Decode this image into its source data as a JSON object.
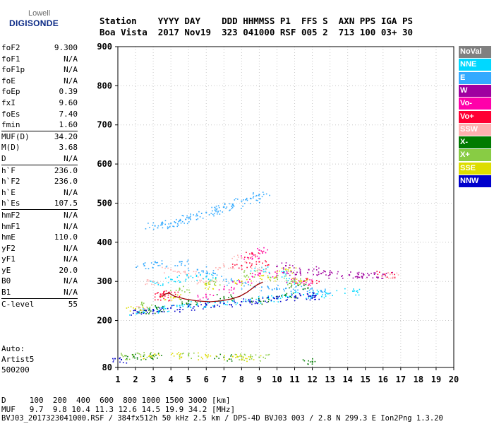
{
  "logo": {
    "line1": "Lowell",
    "line2": "DIGISONDE"
  },
  "header": {
    "line1": "Station    YYYY DAY    DDD HHMMSS P1  FFS S  AXN PPS IGA PS",
    "line2": "Boa Vista  2017 Nov19  323 041000 RSF 005 2  713 100 03+ 30"
  },
  "parameters": [
    {
      "name": "foF2",
      "value": "9.300"
    },
    {
      "name": "foF1",
      "value": "N/A"
    },
    {
      "name": "foF1p",
      "value": "N/A"
    },
    {
      "name": "foE",
      "value": "N/A"
    },
    {
      "name": "foEp",
      "value": "0.39"
    },
    {
      "name": "fxI",
      "value": "9.60"
    },
    {
      "name": "foEs",
      "value": "7.40"
    },
    {
      "name": "fmin",
      "value": "1.60"
    },
    {
      "name": "MUF(D)",
      "value": "34.20",
      "sep": true
    },
    {
      "name": "M(D)",
      "value": "3.68"
    },
    {
      "name": "D",
      "value": "N/A"
    },
    {
      "name": "h`F",
      "value": "236.0",
      "sep": true
    },
    {
      "name": "h`F2",
      "value": "236.0"
    },
    {
      "name": "h`E",
      "value": "N/A"
    },
    {
      "name": "h`Es",
      "value": "107.5"
    },
    {
      "name": "hmF2",
      "value": "N/A",
      "sep": true
    },
    {
      "name": "hmF1",
      "value": "N/A"
    },
    {
      "name": "hmE",
      "value": "110.0"
    },
    {
      "name": "yF2",
      "value": "N/A"
    },
    {
      "name": "yF1",
      "value": "N/A"
    },
    {
      "name": "yE",
      "value": "20.0"
    },
    {
      "name": "B0",
      "value": "N/A"
    },
    {
      "name": "B1",
      "value": "N/A"
    },
    {
      "name": "C-level",
      "value": "55",
      "sep": true
    }
  ],
  "auto_lines": [
    "Auto:",
    "Artist5",
    "500200"
  ],
  "legend": [
    {
      "label": "NoVal",
      "color": "#808080",
      "text_color": "#ffffff"
    },
    {
      "label": "NNE",
      "color": "#00d8ff",
      "text_color": "#ffffff"
    },
    {
      "label": "E",
      "color": "#33aaff",
      "text_color": "#ffffff"
    },
    {
      "label": "W",
      "color": "#a000a0",
      "text_color": "#ffffff"
    },
    {
      "label": "Vo-",
      "color": "#ff00aa",
      "text_color": "#ffffff"
    },
    {
      "label": "Vo+",
      "color": "#ff0033",
      "text_color": "#ffffff"
    },
    {
      "label": "SSW",
      "color": "#ffb0b0",
      "text_color": "#ffffff"
    },
    {
      "label": "X-",
      "color": "#007a00",
      "text_color": "#ffffff"
    },
    {
      "label": "X+",
      "color": "#88cc44",
      "text_color": "#ffffff"
    },
    {
      "label": "SSE",
      "color": "#dddd00",
      "text_color": "#ffffff"
    },
    {
      "label": "NNW",
      "color": "#0000cc",
      "text_color": "#ffffff"
    }
  ],
  "bottom": {
    "d_line": "D     100  200  400  600  800 1000 1500 3000 [km]",
    "muf_line": "MUF   9.7  9.8 10.4 11.3 12.6 14.5 19.9 34.2 [MHz]",
    "footer": "BVJ03_2017323041000.RSF / 384fx512h 50 kHz 2.5 km / DPS-4D BVJ03 003 / 2.8 N 299.3 E Ion2Png 1.3.20"
  },
  "chart_data": {
    "type": "scatter",
    "title": "",
    "xlabel": "",
    "ylabel": "",
    "x_ticks": [
      1,
      2,
      3,
      4,
      5,
      6,
      7,
      8,
      9,
      10,
      11,
      12,
      13,
      14,
      15,
      16,
      17,
      18,
      19,
      20
    ],
    "y_ticks": [
      80,
      200,
      300,
      400,
      500,
      600,
      700,
      800,
      900
    ],
    "xlim": [
      1,
      20
    ],
    "ylim": [
      80,
      900
    ],
    "grid": "dotted, at x = 2,3,4,...,19 and y = 200,300,...,800",
    "series": [
      {
        "name": "NNE",
        "color": "#00d8ff",
        "points": [
          [
            2.2,
            223
          ],
          [
            2.8,
            228
          ],
          [
            3.6,
            232
          ],
          [
            4.5,
            238
          ],
          [
            5.5,
            242
          ],
          [
            6.5,
            246
          ],
          [
            7.5,
            250
          ],
          [
            8.5,
            254
          ],
          [
            9.5,
            258
          ],
          [
            10.5,
            262
          ],
          [
            11.5,
            266
          ],
          [
            12.3,
            268
          ],
          [
            12.8,
            270
          ],
          [
            3.0,
            300
          ],
          [
            4.0,
            305
          ],
          [
            5.0,
            310
          ],
          [
            6.0,
            312
          ],
          [
            9.0,
            330
          ],
          [
            10.0,
            320
          ],
          [
            11.0,
            300
          ],
          [
            14.3,
            275
          ]
        ]
      },
      {
        "name": "E",
        "color": "#33aaff",
        "points": [
          [
            3.1,
            442
          ],
          [
            3.5,
            445
          ],
          [
            4.0,
            448
          ],
          [
            4.5,
            455
          ],
          [
            5.0,
            462
          ],
          [
            5.5,
            468
          ],
          [
            6.0,
            476
          ],
          [
            6.5,
            482
          ],
          [
            7.0,
            490
          ],
          [
            7.5,
            496
          ],
          [
            8.0,
            505
          ],
          [
            8.5,
            512
          ],
          [
            9.0,
            522
          ],
          [
            2.5,
            340
          ],
          [
            3.5,
            345
          ],
          [
            4.5,
            350
          ],
          [
            5.5,
            330
          ],
          [
            6.5,
            320
          ],
          [
            7.5,
            300
          ],
          [
            8.5,
            290
          ],
          [
            9.5,
            285
          ],
          [
            10.5,
            282
          ],
          [
            11.5,
            280
          ],
          [
            12.5,
            276
          ]
        ]
      },
      {
        "name": "W",
        "color": "#a000a0",
        "points": [
          [
            11.8,
            330
          ],
          [
            12.5,
            320
          ],
          [
            13.0,
            318
          ],
          [
            14.1,
            316
          ],
          [
            14.6,
            318
          ],
          [
            15.2,
            316
          ],
          [
            16.0,
            318
          ],
          [
            10.5,
            340
          ],
          [
            10.8,
            325
          ]
        ]
      },
      {
        "name": "Vo-",
        "color": "#ff00aa",
        "points": [
          [
            6.0,
            260
          ],
          [
            7.0,
            280
          ],
          [
            8.0,
            300
          ],
          [
            9.0,
            320
          ],
          [
            10.0,
            320
          ],
          [
            11.0,
            305
          ],
          [
            11.5,
            300
          ],
          [
            8.5,
            360
          ],
          [
            9.0,
            380
          ]
        ]
      },
      {
        "name": "Vo+",
        "color": "#ff0033",
        "points": [
          [
            3.4,
            260
          ],
          [
            3.6,
            268
          ],
          [
            3.9,
            272
          ],
          [
            8.0,
            340
          ],
          [
            8.6,
            370
          ],
          [
            9.0,
            350
          ],
          [
            16.1,
            318
          ],
          [
            12.0,
            300
          ]
        ]
      },
      {
        "name": "SSW",
        "color": "#ffb0b0",
        "points": [
          [
            2.5,
            230
          ],
          [
            3.0,
            300
          ],
          [
            4.0,
            330
          ],
          [
            5.0,
            320
          ],
          [
            6.0,
            300
          ],
          [
            7.0,
            340
          ],
          [
            8.0,
            360
          ],
          [
            9.0,
            330
          ],
          [
            16.4,
            318
          ]
        ]
      },
      {
        "name": "X-",
        "color": "#007a00",
        "points": [
          [
            2.6,
            225
          ],
          [
            3.2,
            232
          ],
          [
            5.0,
            250
          ],
          [
            7.0,
            260
          ],
          [
            9.0,
            250
          ],
          [
            10.5,
            265
          ],
          [
            11.2,
            290
          ],
          [
            1.9,
            108
          ],
          [
            3.0,
            110
          ],
          [
            7.0,
            106
          ],
          [
            12.0,
            95
          ]
        ]
      },
      {
        "name": "X+",
        "color": "#88cc44",
        "points": [
          [
            2.4,
            240
          ],
          [
            4.5,
            280
          ],
          [
            6.2,
            300
          ],
          [
            8.5,
            320
          ],
          [
            10.0,
            310
          ],
          [
            11.0,
            300
          ],
          [
            1.4,
            110
          ],
          [
            2.5,
            112
          ],
          [
            5.0,
            110
          ],
          [
            8.0,
            108
          ],
          [
            9.0,
            106
          ]
        ]
      },
      {
        "name": "SSE",
        "color": "#dddd00",
        "points": [
          [
            2.0,
            230
          ],
          [
            4.0,
            260
          ],
          [
            6.0,
            290
          ],
          [
            8.0,
            300
          ],
          [
            9.5,
            310
          ],
          [
            10.5,
            330
          ],
          [
            11.3,
            300
          ],
          [
            2.8,
            110
          ],
          [
            4.5,
            112
          ],
          [
            6.0,
            110
          ],
          [
            7.5,
            108
          ],
          [
            8.5,
            106
          ]
        ]
      },
      {
        "name": "NNW",
        "color": "#0000cc",
        "points": [
          [
            2.1,
            222
          ],
          [
            3.0,
            228
          ],
          [
            4.0,
            232
          ],
          [
            5.0,
            236
          ],
          [
            6.0,
            240
          ],
          [
            7.0,
            244
          ],
          [
            8.0,
            248
          ],
          [
            9.0,
            252
          ],
          [
            10.0,
            256
          ],
          [
            11.0,
            260
          ],
          [
            11.8,
            262
          ],
          [
            12.2,
            264
          ],
          [
            1.2,
            100
          ]
        ]
      }
    ],
    "trace": {
      "name": "h`F trace",
      "color": "#990000",
      "points": [
        [
          3.5,
          262
        ],
        [
          3.7,
          268
        ],
        [
          3.9,
          270
        ],
        [
          4.2,
          262
        ],
        [
          4.8,
          255
        ],
        [
          5.5,
          250
        ],
        [
          6.2,
          248
        ],
        [
          6.8,
          250
        ],
        [
          7.4,
          255
        ],
        [
          7.9,
          262
        ],
        [
          8.3,
          272
        ],
        [
          8.6,
          282
        ],
        [
          8.9,
          292
        ],
        [
          9.2,
          298
        ]
      ]
    }
  }
}
